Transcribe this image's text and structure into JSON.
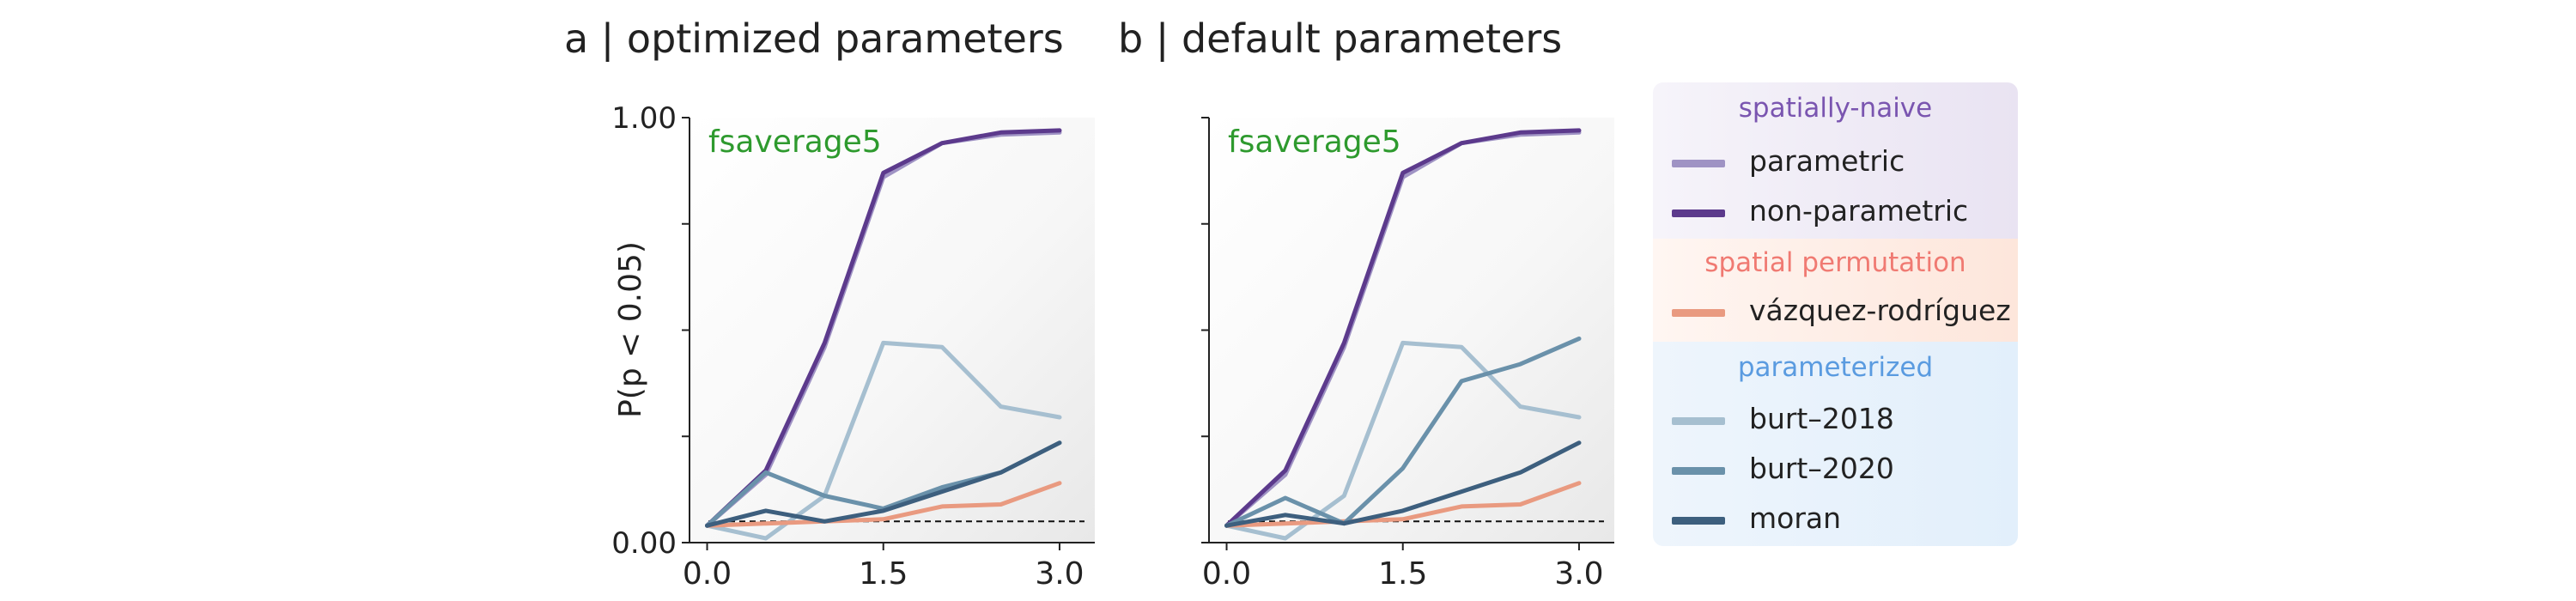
{
  "panels": {
    "a": {
      "title": "a | optimized parameters",
      "annotation": "fsaverage5"
    },
    "b": {
      "title": "b | default parameters",
      "annotation": "fsaverage5"
    }
  },
  "legend": {
    "groups": [
      {
        "title": "spatially-naive",
        "title_color": "#7a55b0",
        "items": [
          {
            "key": "parametric",
            "label": "parametric"
          },
          {
            "key": "non_parametric",
            "label": "non-parametric"
          }
        ]
      },
      {
        "title": "spatial permutation",
        "title_color": "#f07a72",
        "items": [
          {
            "key": "vazquez",
            "label": "vázquez-rodríguez"
          }
        ]
      },
      {
        "title": "parameterized",
        "title_color": "#5a9be0",
        "items": [
          {
            "key": "burt2018",
            "label": "burt–2018"
          },
          {
            "key": "burt2020",
            "label": "burt–2020"
          },
          {
            "key": "moran",
            "label": "moran"
          }
        ]
      }
    ]
  },
  "series_style": {
    "parametric": {
      "color": "#9f93c4"
    },
    "non_parametric": {
      "color": "#5c3a8c"
    },
    "vazquez": {
      "color": "#e99a80"
    },
    "burt2018": {
      "color": "#a6bfd0"
    },
    "burt2020": {
      "color": "#6a91aa"
    },
    "moran": {
      "color": "#3d5f7e"
    }
  },
  "chart_data": [
    {
      "type": "line",
      "title": "a | optimized parameters",
      "annotation": "fsaverage5",
      "ylabel": "P(p < 0.05)",
      "xlabel": "",
      "x": [
        0.0,
        0.5,
        1.0,
        1.5,
        2.0,
        2.5,
        3.0
      ],
      "xlim": [
        -0.15,
        3.3
      ],
      "ylim": [
        0,
        1
      ],
      "xticks": [
        0.0,
        1.5,
        3.0
      ],
      "xtick_labels": [
        "0.0",
        "1.5",
        "3.0"
      ],
      "yticks": [
        0,
        0.25,
        0.5,
        0.75,
        1.0
      ],
      "ytick_labels": [
        "0.00",
        "",
        "",
        "",
        "1.00"
      ],
      "reference_line": 0.05,
      "grid": false,
      "series": [
        {
          "key": "parametric",
          "name": "parametric",
          "values": [
            0.04,
            0.16,
            0.46,
            0.86,
            0.94,
            0.96,
            0.965
          ]
        },
        {
          "key": "non_parametric",
          "name": "non-parametric",
          "values": [
            0.04,
            0.17,
            0.47,
            0.87,
            0.94,
            0.965,
            0.97
          ]
        },
        {
          "key": "burt2018",
          "name": "burt–2018",
          "values": [
            0.04,
            0.01,
            0.11,
            0.47,
            0.46,
            0.32,
            0.295
          ]
        },
        {
          "key": "burt2020",
          "name": "burt–2020",
          "values": [
            0.04,
            0.165,
            0.11,
            0.08,
            0.13,
            0.165,
            0.235
          ]
        },
        {
          "key": "moran",
          "name": "moran",
          "values": [
            0.04,
            0.075,
            0.05,
            0.075,
            0.12,
            0.165,
            0.235
          ]
        },
        {
          "key": "vazquez",
          "name": "vázquez-rodríguez",
          "values": [
            0.04,
            0.045,
            0.05,
            0.055,
            0.085,
            0.09,
            0.14
          ]
        }
      ]
    },
    {
      "type": "line",
      "title": "b | default parameters",
      "annotation": "fsaverage5",
      "ylabel": "",
      "xlabel": "",
      "x": [
        0.0,
        0.5,
        1.0,
        1.5,
        2.0,
        2.5,
        3.0
      ],
      "xlim": [
        -0.15,
        3.3
      ],
      "ylim": [
        0,
        1
      ],
      "xticks": [
        0.0,
        1.5,
        3.0
      ],
      "xtick_labels": [
        "0.0",
        "1.5",
        "3.0"
      ],
      "yticks": [
        0,
        0.25,
        0.5,
        0.75,
        1.0
      ],
      "ytick_labels": [
        "",
        "",
        "",
        "",
        ""
      ],
      "reference_line": 0.05,
      "grid": false,
      "series": [
        {
          "key": "parametric",
          "name": "parametric",
          "values": [
            0.04,
            0.16,
            0.46,
            0.86,
            0.94,
            0.96,
            0.965
          ]
        },
        {
          "key": "non_parametric",
          "name": "non-parametric",
          "values": [
            0.04,
            0.17,
            0.47,
            0.87,
            0.94,
            0.965,
            0.97
          ]
        },
        {
          "key": "burt2018",
          "name": "burt–2018",
          "values": [
            0.04,
            0.01,
            0.11,
            0.47,
            0.46,
            0.32,
            0.295
          ]
        },
        {
          "key": "burt2020",
          "name": "burt–2020",
          "values": [
            0.04,
            0.105,
            0.045,
            0.175,
            0.38,
            0.42,
            0.48
          ]
        },
        {
          "key": "moran",
          "name": "moran",
          "values": [
            0.04,
            0.065,
            0.045,
            0.075,
            0.12,
            0.165,
            0.235
          ]
        },
        {
          "key": "vazquez",
          "name": "vázquez-rodríguez",
          "values": [
            0.04,
            0.045,
            0.05,
            0.055,
            0.085,
            0.09,
            0.14
          ]
        }
      ]
    }
  ]
}
